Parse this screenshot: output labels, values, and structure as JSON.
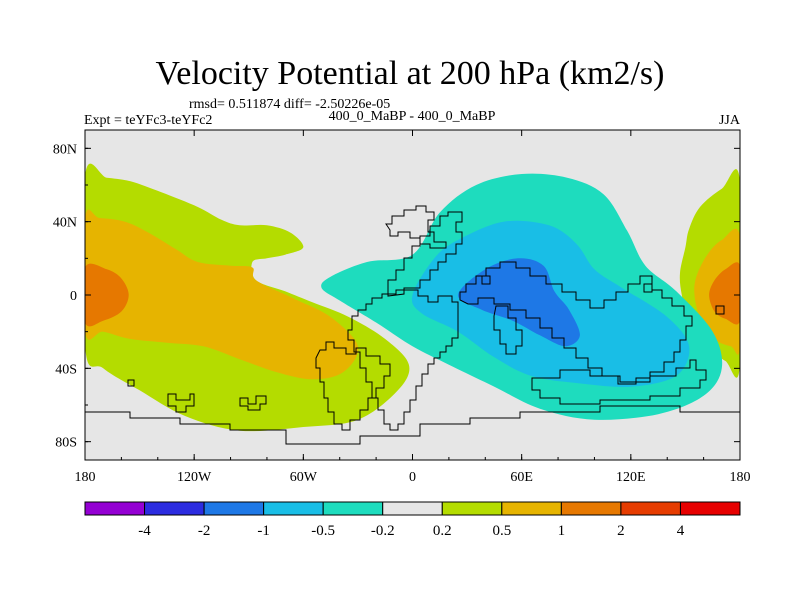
{
  "chart_data": {
    "type": "contour-map",
    "title": "Velocity Potential at 200 hPa (km2/s)",
    "stats_line": "rmsd= 0.511874 diff= -2.50226e-05",
    "left_label": "Expt = teYFc3-teYFc2",
    "center_label": "400_0_MaBP - 400_0_MaBP",
    "season_label": "JJA",
    "lon_range": [
      -180,
      180
    ],
    "lat_range": [
      -90,
      90
    ],
    "xticks": [
      {
        "value": -180,
        "label": "180"
      },
      {
        "value": -120,
        "label": "120W"
      },
      {
        "value": -60,
        "label": "60W"
      },
      {
        "value": 0,
        "label": "0"
      },
      {
        "value": 60,
        "label": "60E"
      },
      {
        "value": 120,
        "label": "120E"
      },
      {
        "value": 180,
        "label": "180"
      }
    ],
    "yticks": [
      {
        "value": 80,
        "label": "80N"
      },
      {
        "value": 40,
        "label": "40N"
      },
      {
        "value": 0,
        "label": "0"
      },
      {
        "value": -40,
        "label": "40S"
      },
      {
        "value": -80,
        "label": "80S"
      }
    ],
    "colorbar": {
      "boundaries": [
        "-4",
        "-2",
        "-1",
        "-0.5",
        "-0.2",
        "0.2",
        "0.5",
        "1",
        "2",
        "4"
      ],
      "colors": [
        "#9400d3",
        "#2c2ce0",
        "#1e78e6",
        "#19bee6",
        "#1edcbe",
        "#e6e6e6",
        "#b4dc00",
        "#e6b400",
        "#e67800",
        "#e63c00",
        "#e60000"
      ]
    },
    "background_color": "#e6e6e6",
    "regions": [
      {
        "name": "west-pacific-positive-0.2-0.5",
        "level": "0.2 to 0.5",
        "color": "#b4dc00",
        "points": [
          [
            -180,
            65
          ],
          [
            -168,
            64
          ],
          [
            -155,
            62
          ],
          [
            -138,
            56
          ],
          [
            -118,
            48
          ],
          [
            -105,
            41
          ],
          [
            -95,
            38
          ],
          [
            -80,
            38
          ],
          [
            -67,
            34
          ],
          [
            -60,
            26
          ],
          [
            -70,
            22
          ],
          [
            -80,
            20
          ],
          [
            -88,
            18
          ],
          [
            -86,
            8
          ],
          [
            -70,
            2
          ],
          [
            -55,
            -4
          ],
          [
            -35,
            -12
          ],
          [
            -15,
            -24
          ],
          [
            -2,
            -38
          ],
          [
            -8,
            -52
          ],
          [
            -30,
            -68
          ],
          [
            -60,
            -72
          ],
          [
            -95,
            -74
          ],
          [
            -125,
            -66
          ],
          [
            -150,
            -52
          ],
          [
            -170,
            -40
          ],
          [
            -180,
            -28
          ]
        ]
      },
      {
        "name": "west-pacific-positive-0.5-1",
        "level": "0.5 to 1",
        "color": "#e6b400",
        "points": [
          [
            -180,
            42
          ],
          [
            -172,
            42
          ],
          [
            -158,
            40
          ],
          [
            -145,
            34
          ],
          [
            -130,
            25
          ],
          [
            -118,
            18
          ],
          [
            -100,
            16
          ],
          [
            -88,
            15
          ],
          [
            -86,
            8
          ],
          [
            -65,
            -2
          ],
          [
            -45,
            -12
          ],
          [
            -30,
            -28
          ],
          [
            -38,
            -42
          ],
          [
            -55,
            -46
          ],
          [
            -75,
            -42
          ],
          [
            -95,
            -35
          ],
          [
            -115,
            -28
          ],
          [
            -135,
            -26
          ],
          [
            -155,
            -24
          ],
          [
            -170,
            -20
          ],
          [
            -180,
            -20
          ]
        ]
      },
      {
        "name": "west-pacific-positive-1-2",
        "level": "1 to 2",
        "color": "#e67800",
        "points": [
          [
            -180,
            15
          ],
          [
            -168,
            14
          ],
          [
            -160,
            9
          ],
          [
            -156,
            0
          ],
          [
            -160,
            -9
          ],
          [
            -170,
            -14
          ],
          [
            -180,
            -15
          ]
        ]
      },
      {
        "name": "east-pacific-positive-0.2-0.5",
        "level": "0.2 to 0.5",
        "color": "#b4dc00",
        "points": [
          [
            180,
            62
          ],
          [
            170,
            58
          ],
          [
            158,
            48
          ],
          [
            152,
            36
          ],
          [
            150,
            26
          ],
          [
            147,
            12
          ],
          [
            148,
            0
          ],
          [
            152,
            -14
          ],
          [
            162,
            -28
          ],
          [
            172,
            -36
          ],
          [
            180,
            -38
          ]
        ]
      },
      {
        "name": "east-pacific-positive-0.5-1",
        "level": "0.5 to 1",
        "color": "#e6b400",
        "points": [
          [
            180,
            32
          ],
          [
            170,
            30
          ],
          [
            162,
            22
          ],
          [
            156,
            10
          ],
          [
            155,
            0
          ],
          [
            158,
            -12
          ],
          [
            166,
            -24
          ],
          [
            175,
            -28
          ],
          [
            180,
            -28
          ]
        ]
      },
      {
        "name": "east-pacific-positive-1-2",
        "level": "1 to 2",
        "color": "#e67800",
        "points": [
          [
            180,
            16
          ],
          [
            172,
            14
          ],
          [
            166,
            8
          ],
          [
            163,
            0
          ],
          [
            166,
            -9
          ],
          [
            172,
            -13
          ],
          [
            180,
            -14
          ]
        ]
      },
      {
        "name": "indian-ocean-negative-0.2-0.5",
        "level": "-0.5 to -0.2",
        "color": "#1edcbe",
        "points": [
          [
            -45,
            10
          ],
          [
            -25,
            18
          ],
          [
            0,
            22
          ],
          [
            15,
            45
          ],
          [
            35,
            60
          ],
          [
            60,
            66
          ],
          [
            85,
            64
          ],
          [
            105,
            55
          ],
          [
            118,
            35
          ],
          [
            128,
            16
          ],
          [
            145,
            2
          ],
          [
            165,
            -20
          ],
          [
            170,
            -40
          ],
          [
            160,
            -55
          ],
          [
            135,
            -65
          ],
          [
            100,
            -68
          ],
          [
            70,
            -62
          ],
          [
            45,
            -50
          ],
          [
            20,
            -38
          ],
          [
            0,
            -28
          ],
          [
            -20,
            -15
          ],
          [
            -40,
            -3
          ],
          [
            -50,
            4
          ]
        ]
      },
      {
        "name": "indian-ocean-negative-0.5-1",
        "level": "-1 to -0.5",
        "color": "#19bee6",
        "points": [
          [
            0,
            0
          ],
          [
            12,
            20
          ],
          [
            25,
            30
          ],
          [
            50,
            40
          ],
          [
            75,
            38
          ],
          [
            90,
            28
          ],
          [
            100,
            14
          ],
          [
            115,
            4
          ],
          [
            140,
            -12
          ],
          [
            152,
            -28
          ],
          [
            145,
            -44
          ],
          [
            120,
            -50
          ],
          [
            90,
            -48
          ],
          [
            65,
            -44
          ],
          [
            45,
            -34
          ],
          [
            25,
            -20
          ],
          [
            5,
            -10
          ]
        ]
      },
      {
        "name": "indian-ocean-negative-1-2",
        "level": "-2 to -1",
        "color": "#1e78e6",
        "points": [
          [
            25,
            0
          ],
          [
            40,
            14
          ],
          [
            58,
            20
          ],
          [
            72,
            16
          ],
          [
            78,
            2
          ],
          [
            86,
            -8
          ],
          [
            92,
            -22
          ],
          [
            84,
            -28
          ],
          [
            70,
            -22
          ],
          [
            55,
            -14
          ],
          [
            38,
            -8
          ]
        ]
      }
    ]
  }
}
